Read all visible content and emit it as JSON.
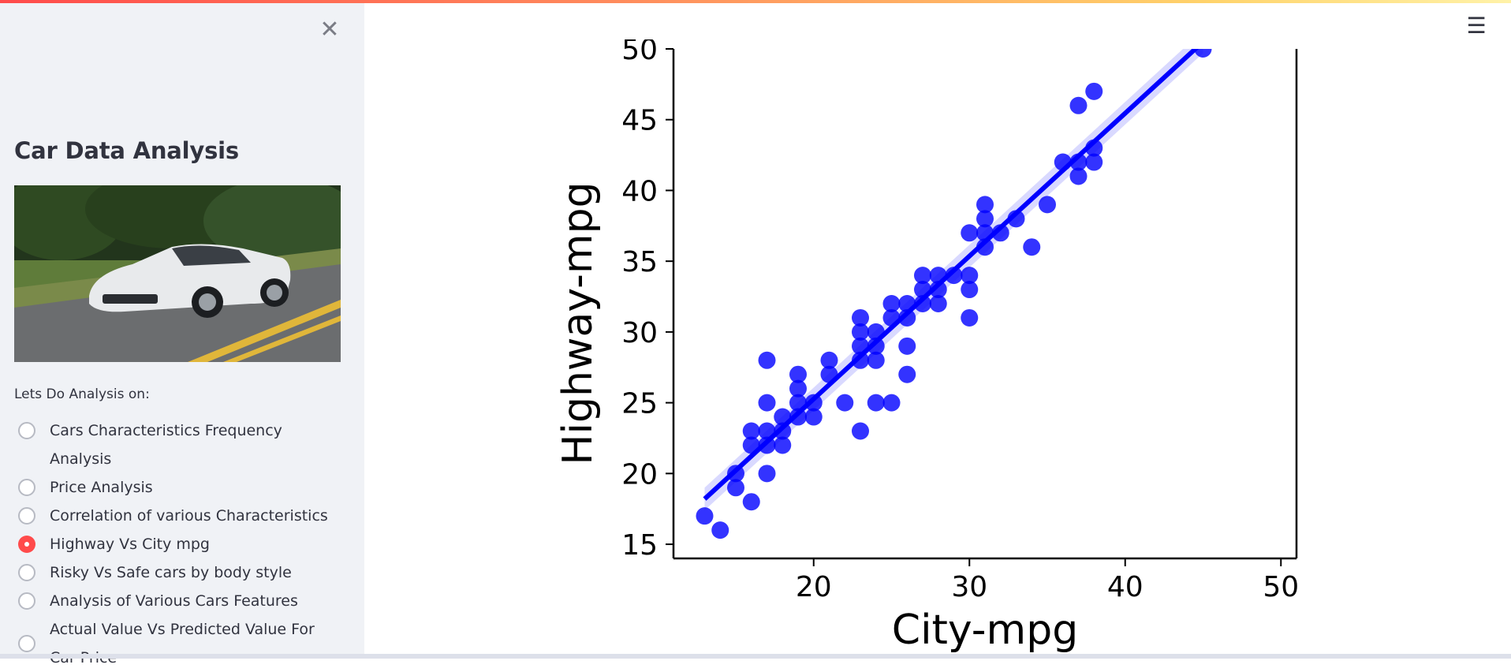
{
  "sidebar": {
    "close_icon": "close-icon",
    "title": "Car Data Analysis",
    "radio_label": "Lets Do Analysis on:",
    "options": [
      {
        "label": "Cars Characteristics Frequency Analysis",
        "checked": false
      },
      {
        "label": "Price Analysis",
        "checked": false
      },
      {
        "label": "Correlation of various Characteristics",
        "checked": false
      },
      {
        "label": "Highway Vs City mpg",
        "checked": true
      },
      {
        "label": "Risky Vs Safe cars by body style",
        "checked": false
      },
      {
        "label": "Analysis of Various Cars Features",
        "checked": false
      },
      {
        "label": "Actual Value Vs Predicted Value For Car Price",
        "checked": false
      }
    ],
    "accent_color": "#ff4b4b"
  },
  "header": {
    "menu_icon": "hamburger-menu-icon",
    "menu_glyph": "☰"
  },
  "chart_data": {
    "type": "scatter",
    "xlabel": "City-mpg",
    "ylabel": "Highway-mpg",
    "xlim": [
      11,
      51
    ],
    "ylim": [
      14,
      50
    ],
    "xticks": [
      20,
      30,
      40,
      50
    ],
    "yticks": [
      15,
      20,
      25,
      30,
      35,
      40,
      45,
      50
    ],
    "color": "#0000ff",
    "regression": {
      "x": [
        13,
        45
      ],
      "y": [
        18.2,
        50.5
      ]
    },
    "points": [
      [
        13,
        17
      ],
      [
        14,
        16
      ],
      [
        15,
        19
      ],
      [
        15,
        20
      ],
      [
        16,
        18
      ],
      [
        16,
        22
      ],
      [
        16,
        23
      ],
      [
        17,
        20
      ],
      [
        17,
        22
      ],
      [
        17,
        23
      ],
      [
        17,
        25
      ],
      [
        17,
        28
      ],
      [
        18,
        22
      ],
      [
        18,
        23
      ],
      [
        18,
        24
      ],
      [
        19,
        24
      ],
      [
        19,
        25
      ],
      [
        19,
        26
      ],
      [
        19,
        27
      ],
      [
        20,
        24
      ],
      [
        20,
        25
      ],
      [
        21,
        27
      ],
      [
        21,
        28
      ],
      [
        22,
        25
      ],
      [
        23,
        23
      ],
      [
        23,
        28
      ],
      [
        23,
        29
      ],
      [
        23,
        30
      ],
      [
        23,
        31
      ],
      [
        24,
        25
      ],
      [
        24,
        28
      ],
      [
        24,
        29
      ],
      [
        24,
        30
      ],
      [
        25,
        25
      ],
      [
        25,
        31
      ],
      [
        25,
        32
      ],
      [
        26,
        27
      ],
      [
        26,
        29
      ],
      [
        26,
        31
      ],
      [
        26,
        32
      ],
      [
        27,
        32
      ],
      [
        27,
        33
      ],
      [
        27,
        34
      ],
      [
        28,
        32
      ],
      [
        28,
        33
      ],
      [
        28,
        34
      ],
      [
        29,
        34
      ],
      [
        30,
        31
      ],
      [
        30,
        33
      ],
      [
        30,
        34
      ],
      [
        30,
        37
      ],
      [
        31,
        36
      ],
      [
        31,
        37
      ],
      [
        31,
        38
      ],
      [
        31,
        39
      ],
      [
        32,
        37
      ],
      [
        33,
        38
      ],
      [
        34,
        36
      ],
      [
        35,
        39
      ],
      [
        36,
        42
      ],
      [
        37,
        41
      ],
      [
        37,
        42
      ],
      [
        37,
        46
      ],
      [
        38,
        42
      ],
      [
        38,
        43
      ],
      [
        38,
        47
      ],
      [
        45,
        50
      ]
    ]
  }
}
